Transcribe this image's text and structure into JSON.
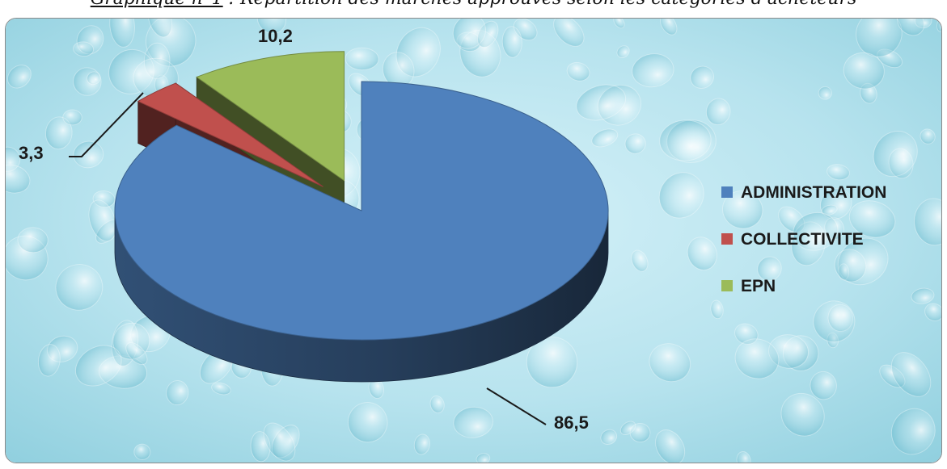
{
  "caption": {
    "number": "Graphique n°1",
    "text": " : Répartition des marchés approuvés selon les catégories d'acheteurs"
  },
  "chart_data": {
    "type": "pie",
    "categories": [
      "ADMINISTRATION",
      "COLLECTIVITE",
      "EPN"
    ],
    "values": [
      86.5,
      3.3,
      10.2
    ],
    "data_labels": [
      "86,5",
      "3,3",
      "10,2"
    ],
    "colors": [
      "#4F81BD",
      "#C0504D",
      "#9BBB59"
    ],
    "exploded": [
      false,
      true,
      true
    ],
    "legend_position": "right",
    "title": "",
    "style": "3d"
  }
}
